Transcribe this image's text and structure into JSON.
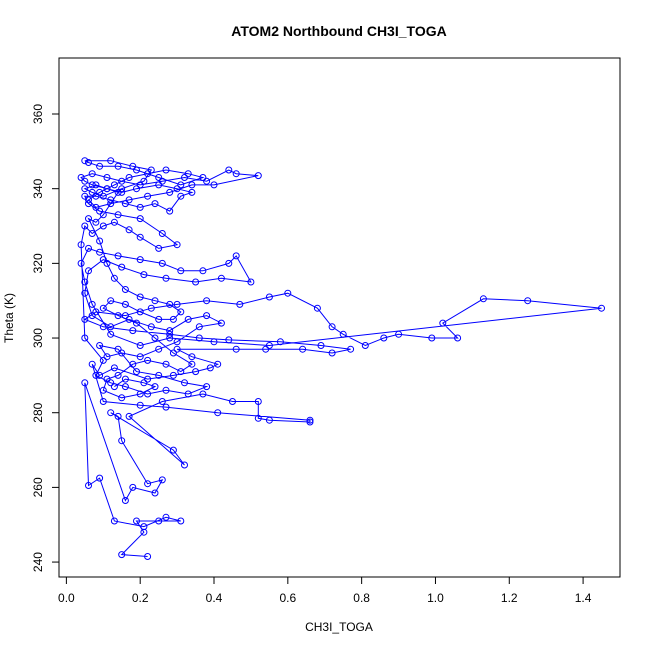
{
  "chart_data": {
    "type": "scatter",
    "title": "ATOM2 Northbound CH3I_TOGA",
    "xlabel": "CH3I_TOGA",
    "ylabel": "Theta (K)",
    "xlim": [
      -0.02,
      1.5
    ],
    "ylim": [
      236,
      375
    ],
    "x_ticks": [
      0.0,
      0.2,
      0.4,
      0.6,
      0.8,
      1.0,
      1.2,
      1.4
    ],
    "x_tick_labels": [
      "0.0",
      "0.2",
      "0.4",
      "0.6",
      "0.8",
      "1.0",
      "1.2",
      "1.4"
    ],
    "y_ticks": [
      240,
      260,
      280,
      300,
      320,
      340,
      360
    ],
    "y_tick_labels": [
      "240",
      "260",
      "280",
      "300",
      "320",
      "340",
      "360"
    ],
    "grid": false,
    "marker": "open-circle",
    "connected": true,
    "color": "#0000ff",
    "series": [
      {
        "points": [
          [
            0.22,
            241.5
          ],
          [
            0.15,
            242
          ],
          [
            0.21,
            248
          ],
          [
            0.19,
            251
          ],
          [
            0.25,
            251
          ],
          [
            0.31,
            251
          ],
          [
            0.27,
            252
          ],
          [
            0.21,
            249.5
          ],
          [
            0.13,
            251
          ],
          [
            0.09,
            262.5
          ],
          [
            0.06,
            260.5
          ],
          [
            0.05,
            288
          ],
          [
            0.16,
            256.5
          ],
          [
            0.18,
            260
          ],
          [
            0.24,
            258.5
          ],
          [
            0.26,
            262
          ],
          [
            0.22,
            261
          ],
          [
            0.15,
            272.5
          ],
          [
            0.14,
            279
          ],
          [
            0.12,
            280
          ],
          [
            0.29,
            270
          ],
          [
            0.32,
            266
          ],
          [
            0.17,
            279
          ],
          [
            0.26,
            283
          ],
          [
            0.37,
            285
          ],
          [
            0.45,
            283
          ],
          [
            0.52,
            283
          ],
          [
            0.52,
            278.5
          ],
          [
            0.55,
            278
          ],
          [
            0.66,
            277.5
          ],
          [
            0.66,
            278
          ],
          [
            0.41,
            280
          ],
          [
            0.27,
            281.5
          ],
          [
            0.2,
            282
          ],
          [
            0.1,
            283
          ],
          [
            0.07,
            293
          ],
          [
            0.09,
            290
          ],
          [
            0.13,
            292
          ],
          [
            0.22,
            289
          ],
          [
            0.29,
            290
          ],
          [
            0.35,
            291
          ],
          [
            0.39,
            292
          ],
          [
            0.41,
            293
          ],
          [
            0.34,
            295
          ],
          [
            0.3,
            297
          ],
          [
            0.46,
            297
          ],
          [
            0.54,
            297
          ],
          [
            0.64,
            297
          ],
          [
            0.72,
            296
          ],
          [
            0.77,
            297
          ],
          [
            0.69,
            298
          ],
          [
            0.58,
            299
          ],
          [
            0.44,
            299.5
          ],
          [
            0.36,
            300
          ],
          [
            0.28,
            301
          ],
          [
            0.18,
            302
          ],
          [
            0.1,
            303
          ],
          [
            0.05,
            305
          ],
          [
            0.08,
            307
          ],
          [
            0.16,
            306
          ],
          [
            0.23,
            308
          ],
          [
            0.3,
            309
          ],
          [
            0.38,
            310
          ],
          [
            0.47,
            309
          ],
          [
            0.55,
            311
          ],
          [
            0.6,
            312
          ],
          [
            0.68,
            308
          ],
          [
            0.72,
            303
          ],
          [
            0.75,
            301
          ],
          [
            0.81,
            298
          ],
          [
            0.86,
            300
          ],
          [
            0.9,
            301
          ],
          [
            0.99,
            300
          ],
          [
            1.06,
            300
          ],
          [
            1.02,
            304
          ],
          [
            1.13,
            310.5
          ],
          [
            1.25,
            310
          ],
          [
            1.45,
            308
          ],
          [
            0.55,
            298
          ],
          [
            0.4,
            299
          ],
          [
            0.28,
            300
          ],
          [
            0.2,
            298
          ],
          [
            0.12,
            301
          ],
          [
            0.07,
            309
          ],
          [
            0.05,
            315
          ],
          [
            0.04,
            320
          ],
          [
            0.06,
            324
          ],
          [
            0.09,
            323
          ],
          [
            0.14,
            322
          ],
          [
            0.2,
            321
          ],
          [
            0.26,
            320
          ],
          [
            0.31,
            318
          ],
          [
            0.37,
            318
          ],
          [
            0.44,
            320
          ],
          [
            0.46,
            322
          ],
          [
            0.5,
            315
          ],
          [
            0.42,
            316
          ],
          [
            0.35,
            315
          ],
          [
            0.27,
            316
          ],
          [
            0.21,
            317
          ],
          [
            0.15,
            319
          ],
          [
            0.1,
            321
          ],
          [
            0.06,
            318
          ],
          [
            0.05,
            312
          ],
          [
            0.07,
            306
          ],
          [
            0.12,
            303
          ],
          [
            0.17,
            305
          ],
          [
            0.23,
            303
          ],
          [
            0.28,
            302
          ],
          [
            0.33,
            305
          ],
          [
            0.38,
            306
          ],
          [
            0.42,
            304
          ],
          [
            0.36,
            303
          ],
          [
            0.3,
            299
          ],
          [
            0.25,
            297
          ],
          [
            0.2,
            295
          ],
          [
            0.15,
            296
          ],
          [
            0.11,
            295
          ],
          [
            0.09,
            298
          ],
          [
            0.14,
            297
          ],
          [
            0.19,
            291
          ],
          [
            0.25,
            290
          ],
          [
            0.32,
            288
          ],
          [
            0.38,
            287
          ],
          [
            0.33,
            285
          ],
          [
            0.27,
            286
          ],
          [
            0.22,
            285
          ],
          [
            0.16,
            287
          ],
          [
            0.12,
            288
          ],
          [
            0.08,
            290
          ],
          [
            0.1,
            294
          ],
          [
            0.05,
            300
          ],
          [
            0.04,
            325
          ],
          [
            0.05,
            330
          ],
          [
            0.07,
            328
          ],
          [
            0.1,
            330
          ],
          [
            0.13,
            331
          ],
          [
            0.17,
            329
          ],
          [
            0.2,
            327
          ],
          [
            0.25,
            324
          ],
          [
            0.3,
            325
          ],
          [
            0.26,
            328
          ],
          [
            0.2,
            332
          ],
          [
            0.14,
            333
          ],
          [
            0.09,
            334
          ],
          [
            0.06,
            336
          ],
          [
            0.05,
            338
          ],
          [
            0.08,
            338
          ],
          [
            0.12,
            337
          ],
          [
            0.16,
            336
          ],
          [
            0.2,
            335
          ],
          [
            0.24,
            336
          ],
          [
            0.28,
            334
          ],
          [
            0.31,
            338
          ],
          [
            0.34,
            339
          ],
          [
            0.3,
            340
          ],
          [
            0.25,
            341
          ],
          [
            0.19,
            340
          ],
          [
            0.15,
            339
          ],
          [
            0.11,
            340
          ],
          [
            0.07,
            341
          ],
          [
            0.05,
            342
          ],
          [
            0.04,
            343
          ],
          [
            0.07,
            344
          ],
          [
            0.11,
            343
          ],
          [
            0.15,
            342
          ],
          [
            0.2,
            341
          ],
          [
            0.26,
            342
          ],
          [
            0.32,
            343
          ],
          [
            0.38,
            342
          ],
          [
            0.44,
            345
          ],
          [
            0.46,
            344
          ],
          [
            0.52,
            343.5
          ],
          [
            0.4,
            341
          ],
          [
            0.34,
            341
          ],
          [
            0.28,
            339
          ],
          [
            0.22,
            338
          ],
          [
            0.17,
            337
          ],
          [
            0.12,
            336
          ],
          [
            0.08,
            335
          ],
          [
            0.06,
            337
          ],
          [
            0.09,
            339
          ],
          [
            0.13,
            341
          ],
          [
            0.17,
            343
          ],
          [
            0.22,
            344
          ],
          [
            0.27,
            345
          ],
          [
            0.33,
            344
          ],
          [
            0.37,
            343
          ],
          [
            0.31,
            341
          ],
          [
            0.25,
            343
          ],
          [
            0.19,
            345
          ],
          [
            0.14,
            346
          ],
          [
            0.09,
            346
          ],
          [
            0.06,
            347
          ],
          [
            0.05,
            347.5
          ],
          [
            0.12,
            347.5
          ],
          [
            0.18,
            346
          ],
          [
            0.23,
            345
          ],
          [
            0.21,
            342
          ],
          [
            0.15,
            340
          ],
          [
            0.1,
            338
          ],
          [
            0.07,
            339
          ],
          [
            0.05,
            340
          ],
          [
            0.08,
            341
          ],
          [
            0.11,
            340
          ],
          [
            0.14,
            339
          ],
          [
            0.1,
            333
          ],
          [
            0.08,
            331
          ],
          [
            0.06,
            332
          ],
          [
            0.09,
            326
          ],
          [
            0.11,
            320
          ],
          [
            0.13,
            316
          ],
          [
            0.16,
            313
          ],
          [
            0.2,
            311
          ],
          [
            0.24,
            310
          ],
          [
            0.28,
            309
          ],
          [
            0.31,
            307
          ],
          [
            0.29,
            305
          ],
          [
            0.25,
            305
          ],
          [
            0.2,
            307
          ],
          [
            0.16,
            309
          ],
          [
            0.12,
            310
          ],
          [
            0.1,
            308
          ],
          [
            0.14,
            306
          ],
          [
            0.19,
            304
          ],
          [
            0.24,
            300
          ],
          [
            0.29,
            296
          ],
          [
            0.34,
            293
          ],
          [
            0.31,
            291
          ],
          [
            0.27,
            293
          ],
          [
            0.22,
            294
          ],
          [
            0.18,
            293
          ],
          [
            0.14,
            290
          ],
          [
            0.11,
            289
          ],
          [
            0.1,
            286
          ],
          [
            0.15,
            284
          ],
          [
            0.2,
            285
          ],
          [
            0.24,
            287
          ],
          [
            0.21,
            288
          ],
          [
            0.16,
            289
          ],
          [
            0.13,
            287
          ]
        ]
      }
    ]
  }
}
